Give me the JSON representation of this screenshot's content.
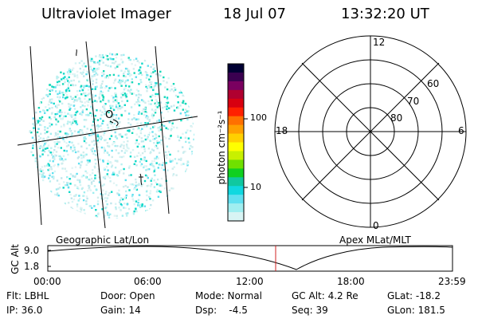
{
  "header": {
    "instrument": "Ultraviolet Imager",
    "date": "18 Jul 07",
    "time": "13:32:20 UT"
  },
  "colorbar": {
    "unit_label": "photon cm⁻²s⁻¹",
    "ticks": [
      "100",
      "10"
    ],
    "colors": [
      "#000033",
      "#3a0050",
      "#7a0060",
      "#b00030",
      "#d80010",
      "#ff2000",
      "#ff7000",
      "#ffa000",
      "#ffd000",
      "#ffff00",
      "#c8f000",
      "#70e000",
      "#10d020",
      "#10c8a0",
      "#10d8e0",
      "#60e0f0",
      "#a0eef0",
      "#d8f4f4"
    ]
  },
  "geo_map": {
    "caption": "Geographic Lat/Lon"
  },
  "polar_plot": {
    "caption": "Apex  MLat/MLT",
    "mlt_labels": [
      "12",
      "18",
      "6",
      "0"
    ],
    "mlat_labels": [
      "60",
      "70",
      "80"
    ]
  },
  "timeline": {
    "axis_label": "GC Alt",
    "y_ticks": [
      "9.0",
      "1.8"
    ],
    "x_ticks": [
      "00:00",
      "06:00",
      "12:00",
      "18:00",
      "23:59"
    ],
    "marker_color": "#d02020"
  },
  "status": {
    "filter": "Flt: LBHL",
    "ip": "IP: 36.0",
    "door": "Door: Open",
    "gain": "Gain: 14",
    "mode": "Mode: Normal",
    "dsp": "Dsp:    -4.5",
    "gc_alt": "GC Alt: 4.2 Re",
    "seq": "Seq: 39",
    "glat": "GLat: -18.2",
    "glon": "GLon: 181.5"
  }
}
